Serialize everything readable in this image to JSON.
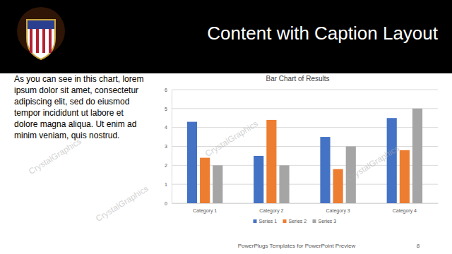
{
  "slide": {
    "title": "Content with Caption Layout",
    "caption_lines": [
      "As you can see in this chart, lorem",
      "ipsum dolor sit amet, consectetur",
      "adipiscing elit, sed do eiusmod",
      "tempor incididunt ut labore et",
      "dolore magna aliqua. Ut enim ad",
      "minim veniam, quis nostrud."
    ],
    "footer": "PowerPlugs Templates for PowerPoint Preview",
    "page_number": 8,
    "watermark": "CrystalGraphics"
  },
  "chart_data": {
    "type": "bar",
    "title": "Bar Chart of Results",
    "categories": [
      "Category 1",
      "Category 2",
      "Category 3",
      "Category 4"
    ],
    "series": [
      {
        "name": "Series 1",
        "color": "#4472c4",
        "values": [
          4.3,
          2.5,
          3.5,
          4.5
        ]
      },
      {
        "name": "Series 2",
        "color": "#ed7d31",
        "values": [
          2.4,
          4.4,
          1.8,
          2.8
        ]
      },
      {
        "name": "Series 3",
        "color": "#a5a5a5",
        "values": [
          2,
          2,
          3,
          5
        ]
      }
    ],
    "ylim": [
      0,
      6
    ],
    "yticks": [
      0,
      1,
      2,
      3,
      4,
      5,
      6
    ],
    "grid": true,
    "legend": "bottom"
  }
}
